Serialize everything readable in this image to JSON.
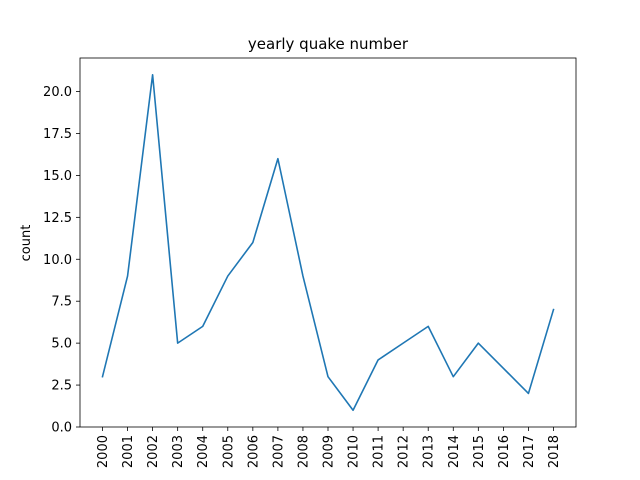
{
  "chart_data": {
    "type": "line",
    "title": "yearly quake number",
    "xlabel": "",
    "ylabel": "count",
    "categories": [
      "2000",
      "2001",
      "2002",
      "2003",
      "2004",
      "2005",
      "2006",
      "2007",
      "2008",
      "2009",
      "2010",
      "2011",
      "2012",
      "2013",
      "2014",
      "2015",
      "2016",
      "2017",
      "2018"
    ],
    "series": [
      {
        "values": [
          3,
          9,
          21,
          5,
          6,
          9,
          11,
          16,
          9,
          3,
          1,
          4,
          5,
          6,
          3,
          5,
          3.5,
          2,
          7
        ]
      }
    ],
    "yticks": [
      "0.0",
      "2.5",
      "5.0",
      "7.5",
      "10.0",
      "12.5",
      "15.0",
      "17.5",
      "20.0"
    ],
    "ylim": [
      0,
      22
    ],
    "grid": false,
    "line_color": "#1f77b4"
  }
}
